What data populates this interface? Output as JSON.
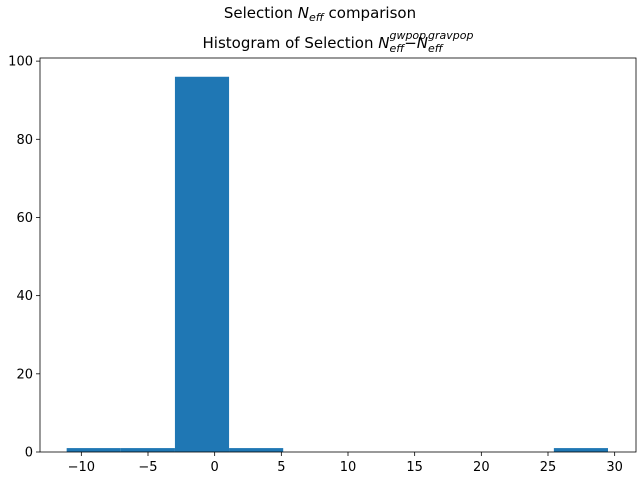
{
  "figure": {
    "suptitle": {
      "prefix": "Selection ",
      "symbol": "N",
      "symbol_sub": "eff",
      "suffix": " comparison"
    }
  },
  "chart_data": {
    "type": "bar",
    "title": {
      "prefix": "Histogram of Selection ",
      "term1": "N",
      "term1_sub": "eff",
      "term1_sup": "gwpop",
      "operator": "−",
      "term2": "N",
      "term2_sub": "eff",
      "term2_sup": "gravpop"
    },
    "xlabel": "",
    "ylabel": "",
    "xlim": [
      -13.1,
      31.6
    ],
    "ylim": [
      0,
      100.8
    ],
    "xticks": [
      -10,
      -5,
      0,
      5,
      10,
      15,
      20,
      25,
      30
    ],
    "xtick_labels": [
      "−10",
      "−5",
      "0",
      "5",
      "10",
      "15",
      "20",
      "25",
      "30"
    ],
    "yticks": [
      0,
      20,
      40,
      60,
      80,
      100
    ],
    "ytick_labels": [
      "0",
      "20",
      "40",
      "60",
      "80",
      "100"
    ],
    "grid": false,
    "bar_color": "#1f77b4",
    "bins": [
      {
        "x0": -11.1,
        "x1": -7.04,
        "count": 1
      },
      {
        "x0": -7.04,
        "x1": -2.98,
        "count": 1
      },
      {
        "x0": -2.98,
        "x1": 1.08,
        "count": 96
      },
      {
        "x0": 1.08,
        "x1": 5.14,
        "count": 1
      },
      {
        "x0": 5.14,
        "x1": 9.2,
        "count": 0
      },
      {
        "x0": 9.2,
        "x1": 13.26,
        "count": 0
      },
      {
        "x0": 13.26,
        "x1": 17.32,
        "count": 0
      },
      {
        "x0": 17.32,
        "x1": 21.38,
        "count": 0
      },
      {
        "x0": 21.38,
        "x1": 25.44,
        "count": 0
      },
      {
        "x0": 25.44,
        "x1": 29.5,
        "count": 1
      }
    ]
  }
}
